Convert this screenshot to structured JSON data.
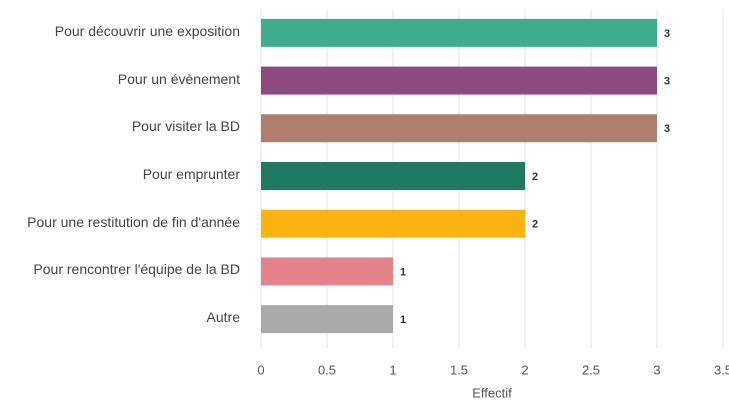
{
  "chart_data": {
    "type": "bar",
    "orientation": "horizontal",
    "categories": [
      "Pour découvrir une exposition",
      "Pour un évènement",
      "Pour visiter la BD",
      "Pour emprunter",
      "Pour une restitution de fin d'année",
      "Pour rencontrer l'équipe de la BD",
      "Autre"
    ],
    "values": [
      3,
      3,
      3,
      2,
      2,
      1,
      1
    ],
    "colors": [
      "#3fac8e",
      "#8c4b7f",
      "#b07e6f",
      "#1f7a63",
      "#fbb313",
      "#e3828b",
      "#aaaaaa"
    ],
    "xlabel": "Effectif",
    "xlim": [
      0,
      3.5
    ],
    "xticks": [
      0,
      0.5,
      1,
      1.5,
      2,
      2.5,
      3,
      3.5
    ],
    "grid": true
  }
}
